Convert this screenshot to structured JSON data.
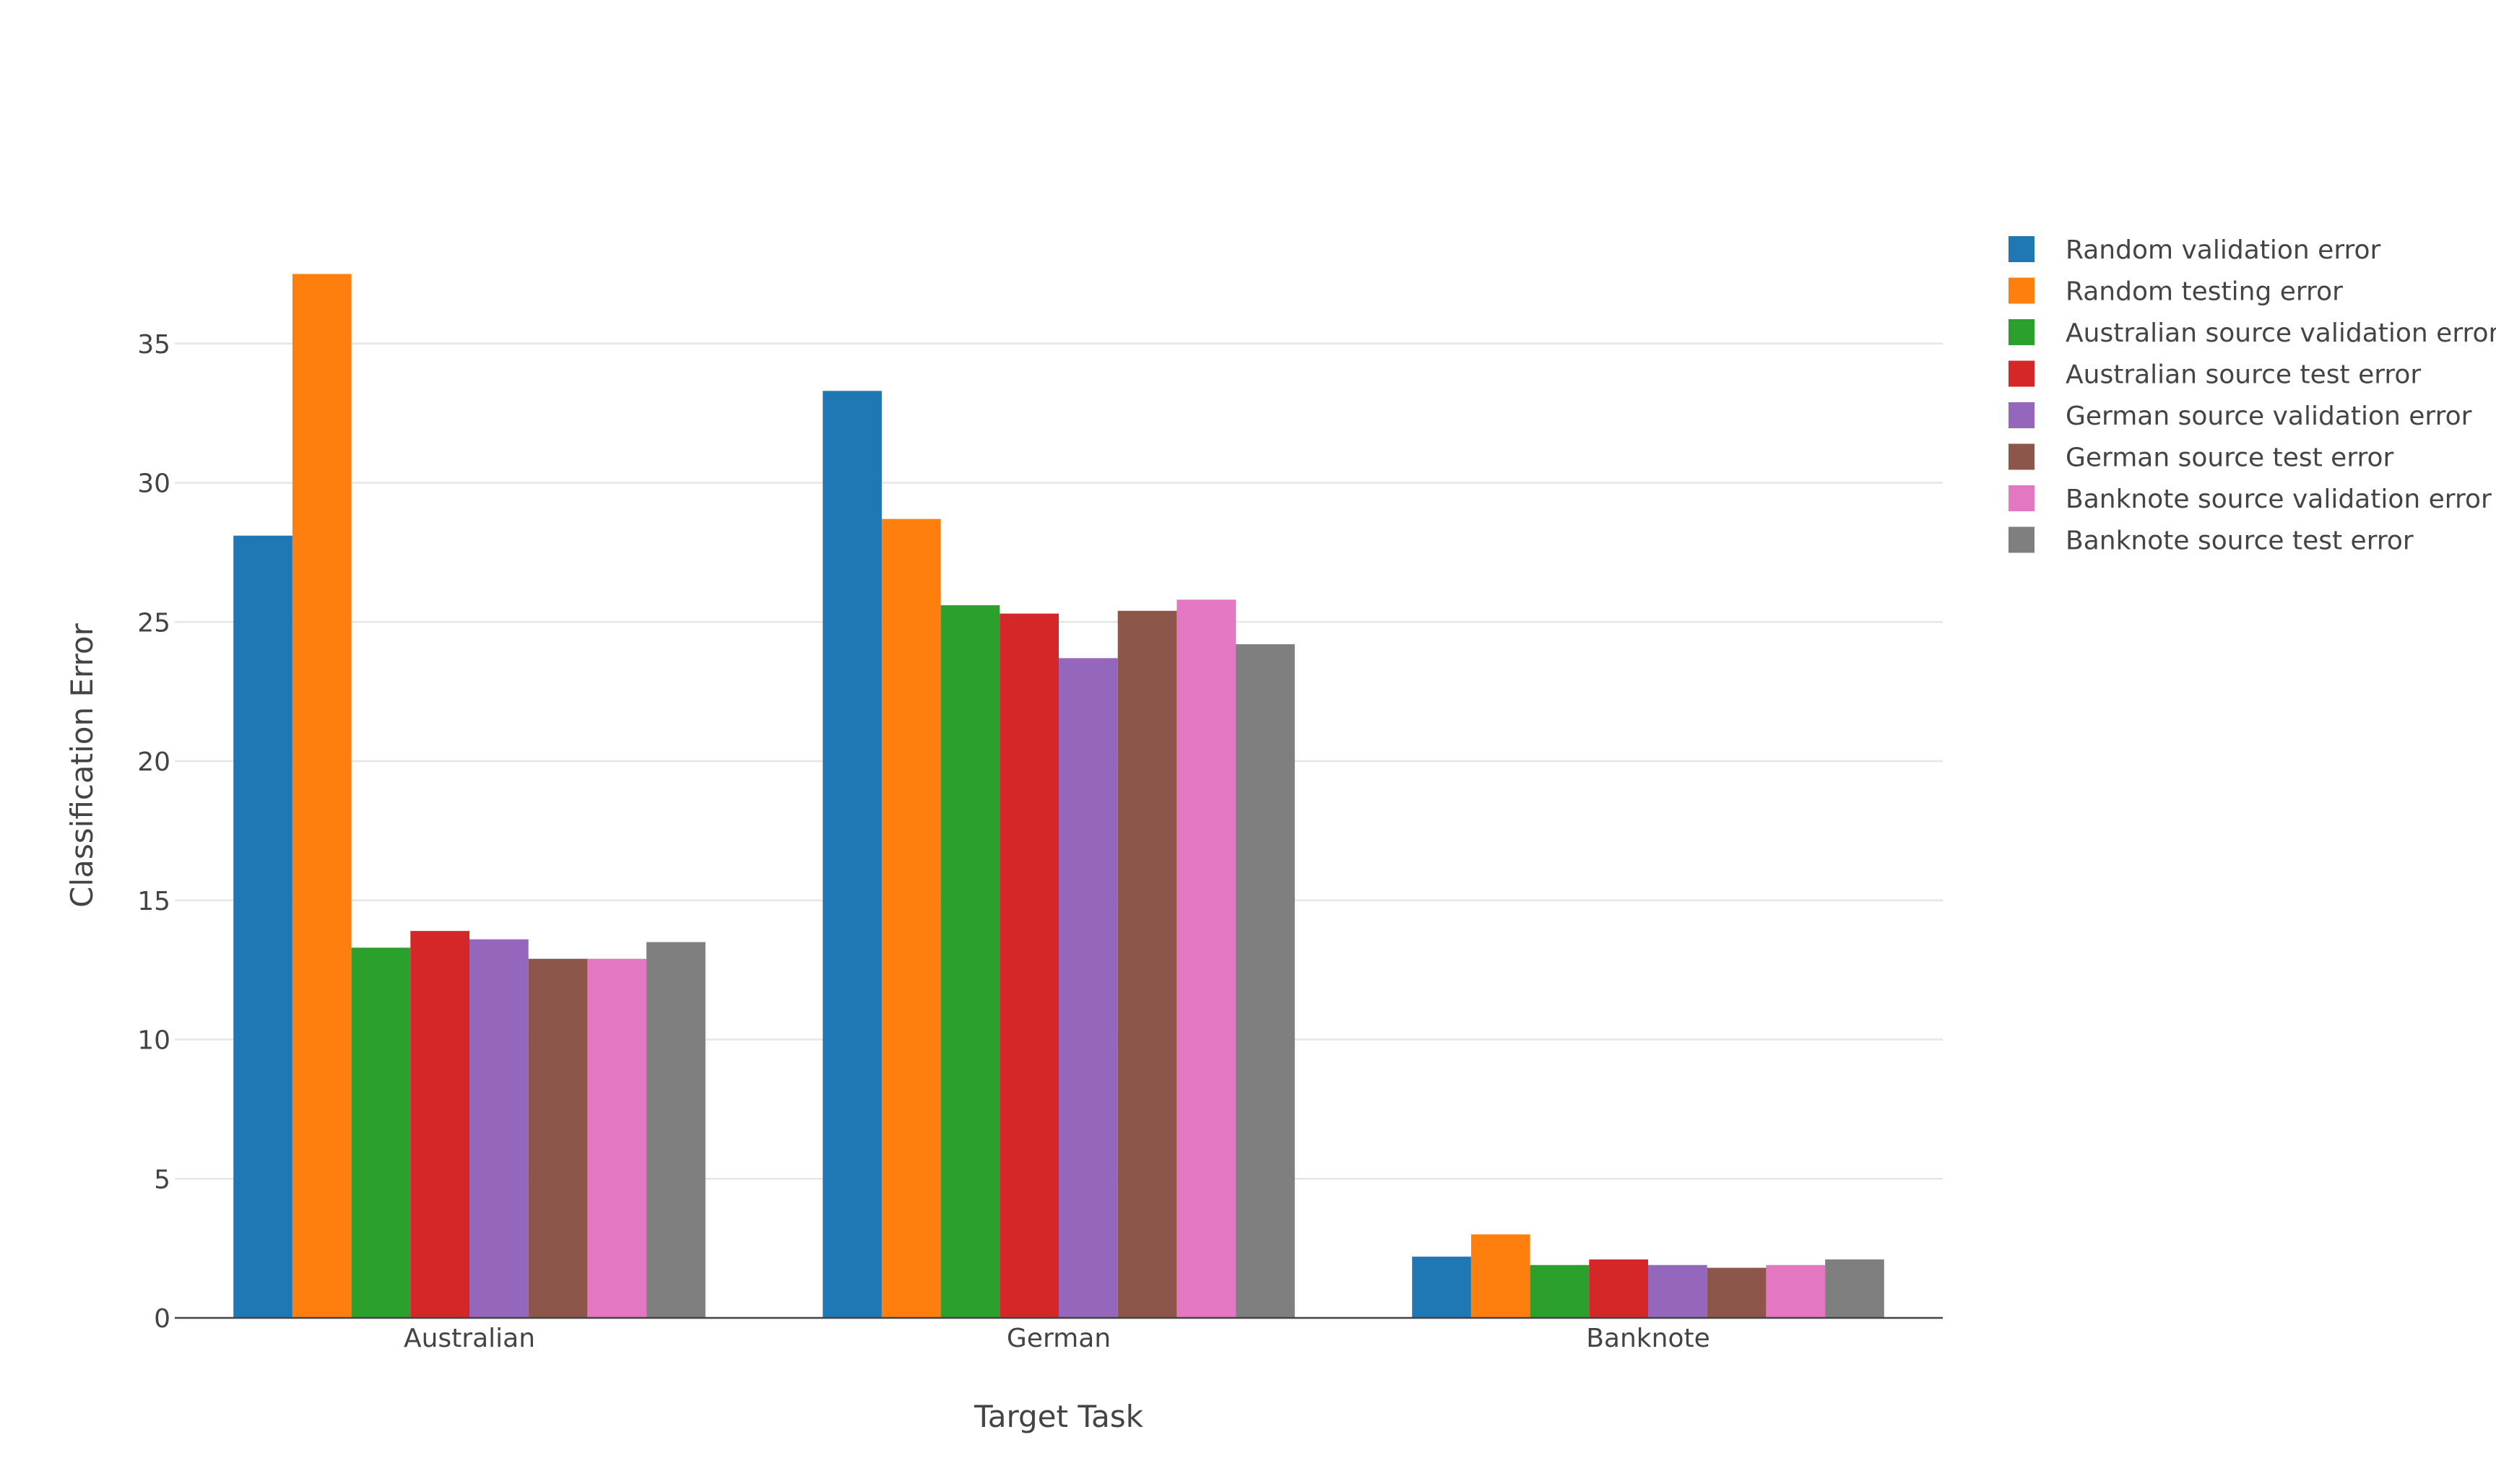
{
  "chart_data": {
    "type": "bar",
    "title": "",
    "xlabel": "Target Task",
    "ylabel": "Classification Error",
    "categories": [
      "Australian",
      "German",
      "Banknote"
    ],
    "ylim": [
      0,
      38
    ],
    "yticks": [
      0,
      5,
      10,
      15,
      20,
      25,
      30,
      35
    ],
    "grid": true,
    "legend_position": "right",
    "series": [
      {
        "name": "Random validation error",
        "color": "#1f77b4",
        "values": [
          28.1,
          33.3,
          2.2
        ]
      },
      {
        "name": "Random testing error",
        "color": "#ff7f0e",
        "values": [
          37.5,
          28.7,
          3.0
        ]
      },
      {
        "name": "Australian source validation error",
        "color": "#2ca02c",
        "values": [
          13.3,
          25.6,
          1.9
        ]
      },
      {
        "name": "Australian source test error",
        "color": "#d62728",
        "values": [
          13.9,
          25.3,
          2.1
        ]
      },
      {
        "name": "German source validation error",
        "color": "#9467bd",
        "values": [
          13.6,
          23.7,
          1.9
        ]
      },
      {
        "name": "German source test error",
        "color": "#8c564b",
        "values": [
          12.9,
          25.4,
          1.8
        ]
      },
      {
        "name": "Banknote source validation error",
        "color": "#e377c2",
        "values": [
          12.9,
          25.8,
          1.9
        ]
      },
      {
        "name": "Banknote source test error",
        "color": "#7f7f7f",
        "values": [
          13.5,
          24.2,
          2.1
        ]
      }
    ]
  }
}
